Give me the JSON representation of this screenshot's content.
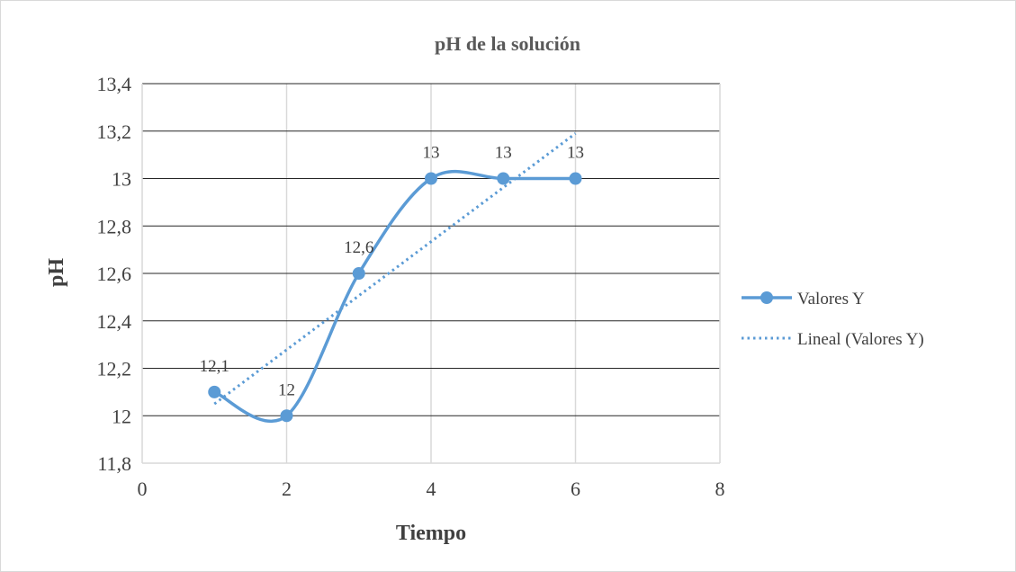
{
  "chart_data": {
    "type": "scatter",
    "title": "pH de la solución",
    "xlabel": "Tiempo",
    "ylabel": "pH",
    "xlim": [
      0,
      8
    ],
    "ylim": [
      11.8,
      13.4
    ],
    "x_ticks": [
      0,
      2,
      4,
      6,
      8
    ],
    "x_tick_labels": [
      "0",
      "2",
      "4",
      "6",
      "8"
    ],
    "y_ticks": [
      11.8,
      12.0,
      12.2,
      12.4,
      12.6,
      12.8,
      13.0,
      13.2,
      13.4
    ],
    "y_tick_labels": [
      "11,8",
      "12",
      "12,2",
      "12,4",
      "12,6",
      "12,8",
      "13",
      "13,2",
      "13,4"
    ],
    "grid": true,
    "legend_position": "right",
    "series": [
      {
        "name": "Valores Y",
        "style": "smooth-line-markers",
        "color": "#5b9bd5",
        "x": [
          1,
          2,
          3,
          4,
          5,
          6
        ],
        "y": [
          12.1,
          12.0,
          12.6,
          13.0,
          13.0,
          13.0
        ],
        "data_labels": [
          "12,1",
          "12",
          "12,6",
          "13",
          "13",
          "13"
        ]
      },
      {
        "name": "Lineal (Valores Y)",
        "style": "dotted-trendline",
        "color": "#5b9bd5",
        "x": [
          1,
          6
        ],
        "y": [
          12.05,
          13.19
        ]
      }
    ]
  }
}
